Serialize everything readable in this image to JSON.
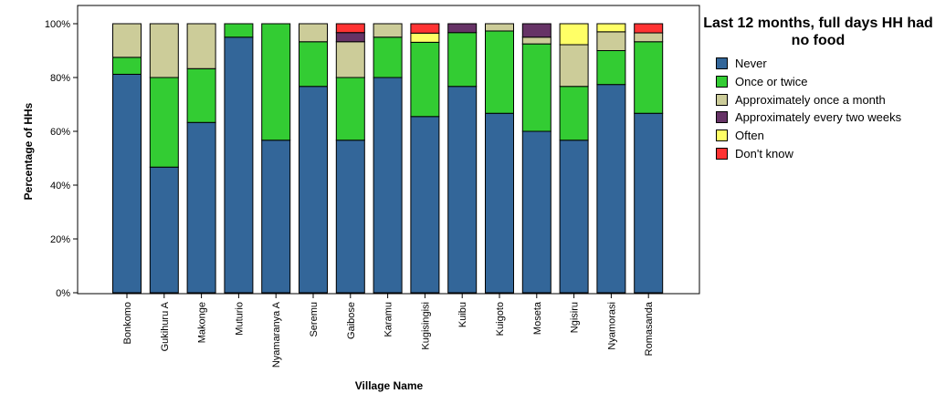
{
  "chart_data": {
    "type": "bar",
    "stacked": true,
    "xlabel": "Village Name",
    "ylabel": "Percentage of HHs",
    "ylim": [
      0,
      100
    ],
    "yticks": [
      "0%",
      "20%",
      "40%",
      "60%",
      "80%",
      "100%"
    ],
    "legend_title": "Last 12 months, full days HH had no food",
    "legend_placement": "right",
    "grid": false,
    "categories": [
      "Bonkomo",
      "Gukihuru A",
      "Makonge",
      "Muturio",
      "Nyamaranya A",
      "Seremu",
      "Gaibose",
      "Karamu",
      "Kugisingisi",
      "Kuibu",
      "Kuigoto",
      "Moseta",
      "Ngisiru",
      "Nyamorasi",
      "Romasanda"
    ],
    "series": [
      {
        "name": "Never",
        "color": "#336699",
        "values": [
          81.2,
          46.7,
          63.3,
          95.0,
          56.7,
          76.7,
          56.7,
          80.0,
          65.5,
          76.7,
          66.7,
          60.0,
          56.7,
          77.4,
          66.7
        ]
      },
      {
        "name": "Once or twice",
        "color": "#33cc33",
        "values": [
          6.3,
          33.3,
          20.0,
          5.0,
          43.3,
          16.6,
          23.3,
          15.0,
          27.6,
          20.0,
          30.6,
          32.5,
          20.0,
          12.6,
          26.6
        ]
      },
      {
        "name": "Approximately once a month",
        "color": "#cccc99",
        "values": [
          12.5,
          20.0,
          16.7,
          0,
          0,
          6.7,
          13.3,
          5.0,
          0,
          0,
          2.7,
          2.5,
          15.5,
          7.0,
          3.3
        ]
      },
      {
        "name": "Approximately every two weeks",
        "color": "#663366",
        "values": [
          0,
          0,
          0,
          0,
          0,
          0,
          3.4,
          0,
          0,
          3.3,
          0,
          5.0,
          0,
          0,
          0
        ]
      },
      {
        "name": "Often",
        "color": "#ffff66",
        "values": [
          0,
          0,
          0,
          0,
          0,
          0,
          0,
          0,
          3.4,
          0,
          0,
          0,
          7.8,
          3.0,
          0
        ]
      },
      {
        "name": "Don't know",
        "color": "#ff3333",
        "values": [
          0,
          0,
          0,
          0,
          0,
          0,
          3.3,
          0,
          3.5,
          0,
          0,
          0,
          0,
          0,
          3.4
        ]
      }
    ]
  }
}
